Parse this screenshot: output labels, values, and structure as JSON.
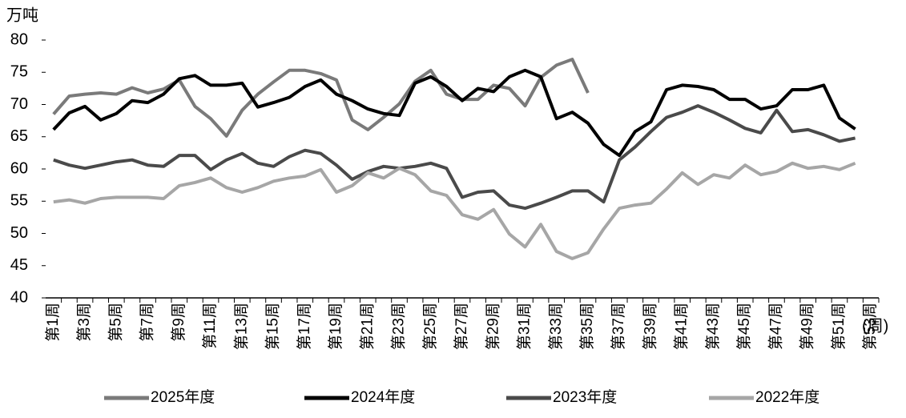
{
  "chart_data": {
    "type": "line",
    "y_label": "万吨",
    "x_label": "(周)",
    "categories": [
      "第1周",
      null,
      "第3周",
      null,
      "第5周",
      null,
      "第7周",
      null,
      "第9周",
      null,
      "第11周",
      null,
      "第13周",
      null,
      "第15周",
      null,
      "第17周",
      null,
      "第19周",
      null,
      "第21周",
      null,
      "第23周",
      null,
      "第25周",
      null,
      "第27周",
      null,
      "第29周",
      null,
      "第31周",
      null,
      "第33周",
      null,
      "第35周",
      null,
      "第37周",
      null,
      "第39周",
      null,
      "第41周",
      null,
      "第43周",
      null,
      "第45周",
      null,
      "第47周",
      null,
      "第49周",
      null,
      "第51周",
      null,
      "第53周"
    ],
    "series": [
      {
        "name": "2025年度",
        "color": "#7a7a7a",
        "values": [
          68.5,
          71.3,
          71.6,
          71.8,
          71.6,
          72.6,
          71.8,
          72.4,
          73.8,
          69.7,
          67.8,
          65.1,
          69.1,
          71.6,
          73.5,
          75.3,
          75.3,
          74.8,
          73.8,
          67.6,
          66.1,
          68.0,
          70.1,
          73.6,
          75.3,
          71.6,
          70.8,
          70.8,
          73.0,
          72.5,
          69.8,
          74.2,
          76.1,
          77.0,
          71.8,
          null,
          null,
          null,
          null,
          null,
          null,
          null,
          null,
          null,
          null,
          null,
          null,
          null,
          null,
          null,
          null,
          null,
          null
        ]
      },
      {
        "name": "2024年度",
        "color": "#000000",
        "values": [
          66.1,
          68.7,
          69.7,
          67.6,
          68.6,
          70.6,
          70.3,
          71.6,
          74.0,
          74.5,
          73.0,
          73.0,
          73.3,
          69.6,
          70.3,
          71.1,
          72.8,
          73.8,
          71.6,
          70.6,
          69.3,
          68.6,
          68.3,
          73.3,
          74.3,
          72.8,
          70.6,
          72.5,
          72.0,
          74.3,
          75.3,
          74.3,
          67.8,
          68.8,
          67.1,
          63.8,
          62.1,
          65.8,
          67.3,
          72.3,
          73.0,
          72.8,
          72.3,
          70.8,
          70.8,
          69.3,
          69.8,
          72.3,
          72.3,
          73.0,
          67.9,
          66.2,
          null
        ]
      },
      {
        "name": "2023年度",
        "color": "#4a4a4a",
        "values": [
          61.4,
          60.6,
          60.1,
          60.6,
          61.1,
          61.4,
          60.6,
          60.4,
          62.1,
          62.1,
          59.9,
          61.4,
          62.4,
          60.9,
          60.4,
          61.9,
          62.9,
          62.4,
          60.6,
          58.4,
          59.6,
          60.4,
          60.1,
          60.4,
          60.9,
          60.1,
          55.6,
          56.4,
          56.6,
          54.4,
          53.9,
          54.7,
          55.6,
          56.6,
          56.6,
          54.9,
          61.4,
          63.4,
          65.8,
          68.0,
          68.8,
          69.8,
          68.8,
          67.6,
          66.3,
          65.6,
          69.1,
          65.8,
          66.1,
          65.3,
          64.3,
          64.8,
          null
        ]
      },
      {
        "name": "2022年度",
        "color": "#a6a6a6",
        "values": [
          54.9,
          55.2,
          54.7,
          55.4,
          55.6,
          55.6,
          55.6,
          55.4,
          57.4,
          57.9,
          58.6,
          57.1,
          56.4,
          57.1,
          58.1,
          58.6,
          58.9,
          59.9,
          56.4,
          57.4,
          59.4,
          58.6,
          60.1,
          59.1,
          56.6,
          55.9,
          52.9,
          52.2,
          53.7,
          49.9,
          47.9,
          51.4,
          47.2,
          46.1,
          47.0,
          50.7,
          53.9,
          54.4,
          54.7,
          56.9,
          59.4,
          57.6,
          59.1,
          58.6,
          60.6,
          59.1,
          59.6,
          60.9,
          60.1,
          60.4,
          59.9,
          60.9,
          null
        ]
      }
    ],
    "ylim": [
      40,
      80
    ],
    "yticks": [
      40,
      45,
      50,
      55,
      60,
      65,
      70,
      75,
      80
    ],
    "grid": false,
    "legend": "bottom"
  }
}
